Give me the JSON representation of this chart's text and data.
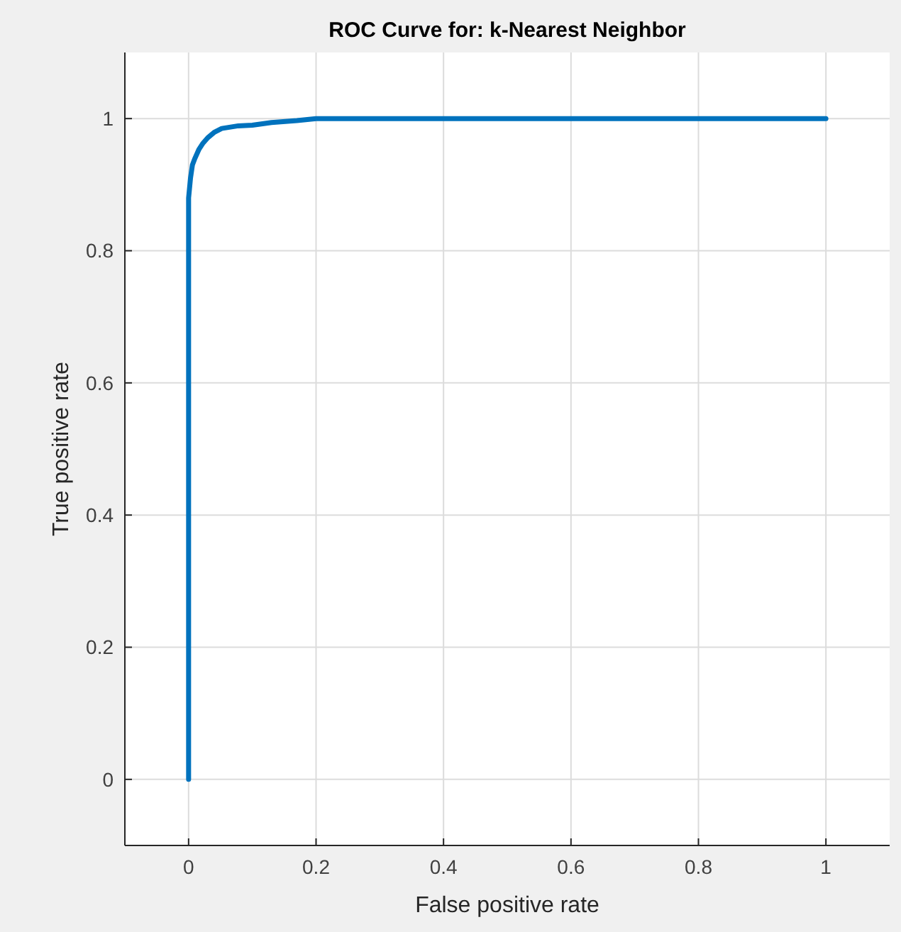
{
  "chart_data": {
    "type": "line",
    "title": "ROC Curve for: k-Nearest Neighbor",
    "xlabel": "False positive rate",
    "ylabel": "True positive rate",
    "x": [
      0,
      0,
      0.003,
      0.006,
      0.01,
      0.016,
      0.022,
      0.03,
      0.04,
      0.052,
      0.078,
      0.1,
      0.13,
      0.17,
      0.2,
      1
    ],
    "series": [
      {
        "color": "#0072bd",
        "values": [
          0,
          0.88,
          0.91,
          0.93,
          0.94,
          0.953,
          0.962,
          0.971,
          0.979,
          0.985,
          0.989,
          0.99,
          0.994,
          0.997,
          1,
          1
        ]
      }
    ],
    "xlim": [
      -0.1,
      1.1
    ],
    "ylim": [
      -0.1,
      1.1
    ],
    "xticks": [
      0,
      0.2,
      0.4,
      0.6,
      0.8,
      1
    ],
    "yticks": [
      0,
      0.2,
      0.4,
      0.6,
      0.8,
      1
    ],
    "grid": true,
    "marker": "none",
    "line_style": "solid"
  }
}
